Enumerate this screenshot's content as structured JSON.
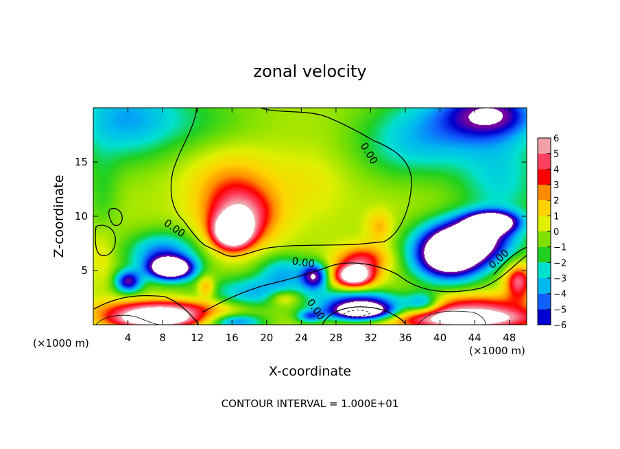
{
  "chart_data": {
    "type": "heatmap",
    "title": "zonal velocity",
    "xlabel": "X-coordinate",
    "ylabel": "Z-coordinate",
    "x_unit_left": "(×1000 m)",
    "x_unit_right": "(×1000 m)",
    "xlim": [
      0,
      50
    ],
    "ylim": [
      0,
      20
    ],
    "x_ticks": [
      4,
      8,
      12,
      16,
      20,
      24,
      28,
      32,
      36,
      40,
      44,
      48
    ],
    "y_ticks": [
      5,
      10,
      15
    ],
    "colorbar": {
      "ticks": [
        6,
        5,
        4,
        3,
        2,
        1,
        0,
        -1,
        -2,
        -3,
        -4,
        -5,
        -6
      ],
      "tick_labels": [
        "6",
        "5",
        "4",
        "3",
        "2",
        "1",
        "0",
        "−1",
        "−2",
        "−3",
        "−4",
        "−5",
        "−6"
      ],
      "colors": [
        "#f0a0a8",
        "#ff4060",
        "#ff0000",
        "#ff8c00",
        "#ffd200",
        "#e0f000",
        "#80e000",
        "#20d020",
        "#00e0d0",
        "#00b8f0",
        "#1060ff",
        "#0000d0",
        "#7000a0"
      ],
      "saturated_color": "#ffffff"
    },
    "contour_labels": [
      "0.00",
      "0.00",
      "0.00",
      "0.00",
      "0.00"
    ],
    "footer": "CONTOUR INTERVAL = 1.000E+01",
    "blobs": [
      {
        "x": 3,
        "z": 19,
        "rx": 6,
        "rz": 4,
        "v": -3
      },
      {
        "x": 10,
        "z": 19,
        "rx": 8,
        "rz": 3,
        "v": -1.5
      },
      {
        "x": 42,
        "z": 18.5,
        "rx": 9,
        "rz": 3.5,
        "v": -3.5
      },
      {
        "x": 46,
        "z": 19.5,
        "rx": 5,
        "rz": 2,
        "v": -4.5
      },
      {
        "x": 36,
        "z": 16,
        "rx": 6,
        "rz": 3,
        "v": -1.5
      },
      {
        "x": 47,
        "z": 13,
        "rx": 5,
        "rz": 4,
        "v": -2.5
      },
      {
        "x": 1,
        "z": 12,
        "rx": 2,
        "rz": 4,
        "v": -1.2
      },
      {
        "x": 16,
        "z": 13,
        "rx": 5,
        "rz": 3,
        "v": 2.2
      },
      {
        "x": 17,
        "z": 10,
        "rx": 4,
        "rz": 2.5,
        "v": 5
      },
      {
        "x": 16,
        "z": 8.5,
        "rx": 2.2,
        "rz": 1.5,
        "v": 8
      },
      {
        "x": 25,
        "z": 13,
        "rx": 4,
        "rz": 3,
        "v": 0.8
      },
      {
        "x": 31,
        "z": 6,
        "rx": 3,
        "rz": 1.3,
        "v": 4
      },
      {
        "x": 30,
        "z": 4.5,
        "rx": 2.2,
        "rz": 1,
        "v": 8
      },
      {
        "x": 33,
        "z": 9,
        "rx": 1.5,
        "rz": 1.5,
        "v": 2
      },
      {
        "x": 43,
        "z": 7.8,
        "rx": 5,
        "rz": 2,
        "v": -9
      },
      {
        "x": 41,
        "z": 6,
        "rx": 4,
        "rz": 2,
        "v": -8
      },
      {
        "x": 46,
        "z": 9.5,
        "rx": 3,
        "rz": 1,
        "v": -8
      },
      {
        "x": 8,
        "z": 6.5,
        "rx": 4,
        "rz": 2,
        "v": -4.5
      },
      {
        "x": 9,
        "z": 5.2,
        "rx": 2.5,
        "rz": 1,
        "v": -9
      },
      {
        "x": 4,
        "z": 4,
        "rx": 1.5,
        "rz": 1,
        "v": -6
      },
      {
        "x": 1,
        "z": 6.5,
        "rx": 1.5,
        "rz": 2.5,
        "v": 1
      },
      {
        "x": 25.5,
        "z": 4.5,
        "rx": 1.5,
        "rz": 1.2,
        "v": -6
      },
      {
        "x": 22,
        "z": 5,
        "rx": 3,
        "rz": 1.5,
        "v": -3
      },
      {
        "x": 19,
        "z": 3,
        "rx": 6,
        "rz": 1.5,
        "v": -3.5
      },
      {
        "x": 22,
        "z": 2.5,
        "rx": 2,
        "rz": 0.8,
        "v": 3
      },
      {
        "x": 13,
        "z": 3.5,
        "rx": 1,
        "rz": 1,
        "v": 3
      },
      {
        "x": 8,
        "z": 1.5,
        "rx": 7,
        "rz": 0.9,
        "v": 5
      },
      {
        "x": 7,
        "z": 0.5,
        "rx": 5,
        "rz": 0.8,
        "v": 8
      },
      {
        "x": 31,
        "z": 1.2,
        "rx": 4,
        "rz": 0.8,
        "v": -9
      },
      {
        "x": 31,
        "z": 2.2,
        "rx": 5,
        "rz": 1,
        "v": -5
      },
      {
        "x": 43,
        "z": 0.6,
        "rx": 8,
        "rz": 1,
        "v": 8
      },
      {
        "x": 44,
        "z": 2,
        "rx": 7,
        "rz": 1,
        "v": 3
      },
      {
        "x": 49,
        "z": 4,
        "rx": 1.5,
        "rz": 1.5,
        "v": 5
      },
      {
        "x": 16.5,
        "z": 0.3,
        "rx": 3,
        "rz": 0.7,
        "v": -4
      },
      {
        "x": 25,
        "z": 0.8,
        "rx": 1.5,
        "rz": 0.6,
        "v": -4
      },
      {
        "x": 38,
        "z": 2,
        "rx": 2,
        "rz": 1,
        "v": -4
      }
    ]
  }
}
